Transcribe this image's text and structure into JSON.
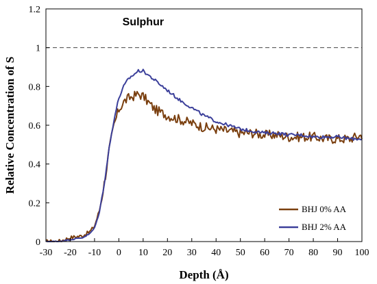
{
  "chart_data": {
    "type": "line",
    "title": "Sulphur",
    "xlabel": "Depth (Å)",
    "ylabel": "Relative Concentration of S",
    "xlim": [
      -30,
      100
    ],
    "ylim": [
      0,
      1.2
    ],
    "xticks": [
      -30,
      -20,
      -10,
      0,
      10,
      20,
      30,
      40,
      50,
      60,
      70,
      80,
      90,
      100
    ],
    "yticks": [
      0,
      0.2,
      0.4,
      0.6,
      0.8,
      1,
      1.2
    ],
    "ytick_labels": [
      "0",
      "0.2",
      "0.4",
      "0.6",
      "0.8",
      "1",
      "1.2"
    ],
    "grid": false,
    "reference_line": {
      "y": 1,
      "style": "dashed"
    },
    "legend_position": "bottom-right",
    "series": [
      {
        "name": "BHJ 0% AA",
        "color": "#7a3f0f",
        "noise": 0.025,
        "x": [
          -30,
          -25,
          -20,
          -15,
          -12,
          -10,
          -8,
          -6,
          -4,
          -2,
          0,
          2,
          4,
          6,
          8,
          10,
          12,
          15,
          20,
          25,
          30,
          35,
          40,
          45,
          50,
          55,
          60,
          65,
          70,
          75,
          80,
          85,
          90,
          95,
          100
        ],
        "values": [
          0.0,
          0.0,
          0.02,
          0.03,
          0.05,
          0.08,
          0.16,
          0.3,
          0.47,
          0.6,
          0.68,
          0.72,
          0.74,
          0.75,
          0.76,
          0.75,
          0.72,
          0.68,
          0.65,
          0.63,
          0.61,
          0.59,
          0.58,
          0.57,
          0.56,
          0.56,
          0.55,
          0.55,
          0.54,
          0.54,
          0.54,
          0.53,
          0.53,
          0.53,
          0.55
        ]
      },
      {
        "name": "BHJ 2% AA",
        "color": "#3b3f9a",
        "noise": 0.008,
        "x": [
          -30,
          -25,
          -20,
          -15,
          -12,
          -10,
          -8,
          -6,
          -4,
          -2,
          0,
          2,
          4,
          6,
          8,
          10,
          12,
          15,
          20,
          25,
          30,
          35,
          40,
          45,
          50,
          55,
          60,
          65,
          70,
          75,
          80,
          85,
          90,
          95,
          100
        ],
        "values": [
          0.0,
          0.0,
          0.01,
          0.02,
          0.04,
          0.07,
          0.15,
          0.3,
          0.48,
          0.63,
          0.74,
          0.8,
          0.84,
          0.86,
          0.88,
          0.88,
          0.86,
          0.83,
          0.78,
          0.73,
          0.69,
          0.65,
          0.62,
          0.6,
          0.58,
          0.57,
          0.56,
          0.56,
          0.55,
          0.55,
          0.54,
          0.54,
          0.54,
          0.53,
          0.53
        ]
      }
    ]
  }
}
